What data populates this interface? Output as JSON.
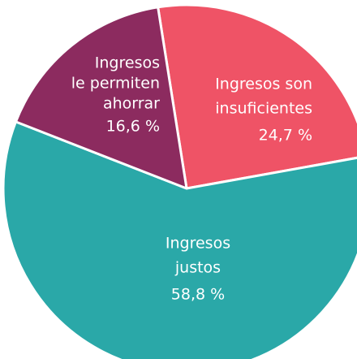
{
  "chart_data": {
    "type": "pie",
    "categories": [
      [
        "Ingresos son",
        "insuficientes"
      ],
      [
        "Ingresos",
        "justos"
      ],
      [
        "Ingresos",
        "le permiten",
        "ahorrar"
      ]
    ],
    "values": [
      24.7,
      58.8,
      16.6
    ],
    "value_labels": [
      "24,7 %",
      "58,8 %",
      "16,6 %"
    ],
    "colors": [
      "#ef5366",
      "#2aa8a8",
      "#8c2b5f"
    ]
  }
}
